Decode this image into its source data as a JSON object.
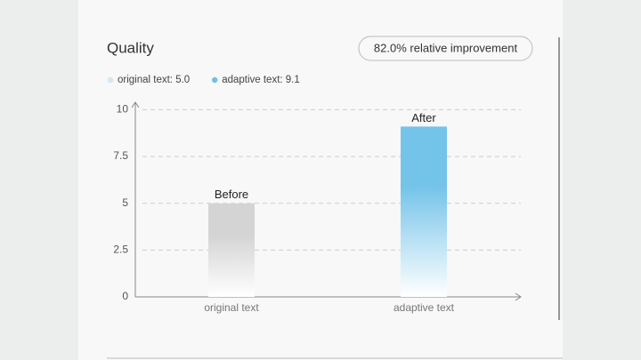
{
  "chart_data": {
    "type": "bar",
    "title": "Quality",
    "badge": "82.0% relative improvement",
    "legend": [
      {
        "label": "original text: 5.0",
        "color": "#d3e6f5"
      },
      {
        "label": "adaptive text: 9.1",
        "color": "#6fbfe6"
      }
    ],
    "categories": [
      "original text",
      "adaptive text"
    ],
    "values": [
      5.0,
      9.1
    ],
    "value_labels": [
      "Before",
      "After"
    ],
    "colors": [
      "#d4d4d4",
      "#74c3e9"
    ],
    "ylim": [
      0,
      10.4
    ],
    "yticks": [
      0,
      2.5,
      5,
      7.5,
      10
    ],
    "grid": true
  }
}
